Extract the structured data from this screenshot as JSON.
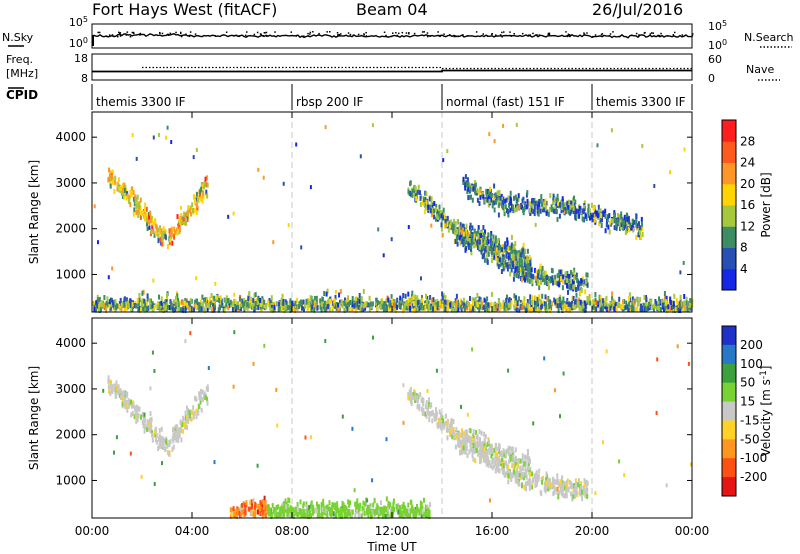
{
  "header": {
    "title": "Fort Hays West (fitACF)",
    "beam": "Beam 04",
    "date": "26/Jul/2016"
  },
  "summary": {
    "nsky_label": "N.Sky",
    "nsearch_label": "N.Search",
    "freq_label": "Freq.",
    "freq_unit": "[MHz]",
    "nave_label": "Nave",
    "cpid_label": "CPID",
    "noise_ticks_left": [
      "10^5",
      "10^0"
    ],
    "noise_ticks_right": [
      "10^5",
      "10^0"
    ],
    "freq_ticks": [
      "18",
      "8"
    ],
    "nave_ticks": [
      "60",
      "0"
    ]
  },
  "cpid_segments": [
    {
      "label": "themis 3300 IF",
      "start_hour": 0,
      "end_hour": 8
    },
    {
      "label": "rbsp 200 IF",
      "start_hour": 8,
      "end_hour": 14
    },
    {
      "label": "normal (fast) 151 IF",
      "start_hour": 14,
      "end_hour": 20
    },
    {
      "label": "themis 3300 IF",
      "start_hour": 20,
      "end_hour": 24
    }
  ],
  "chart_data": [
    {
      "type": "heatmap",
      "quantity": "power",
      "xlabel": "",
      "ylabel": "Slant Range [km]",
      "xlim": [
        0,
        24
      ],
      "ylim": [
        180,
        4550
      ],
      "yticks": [
        1000,
        2000,
        3000,
        4000
      ],
      "colorbar": {
        "label": "Power [dB]",
        "ticks": [
          4,
          8,
          12,
          16,
          20,
          24,
          28
        ],
        "range": [
          0,
          32
        ],
        "colors": [
          "#1428e6",
          "#2850b4",
          "#3c8c64",
          "#a8c83c",
          "#ffd400",
          "#ff9628",
          "#ff5a1e",
          "#ff1e1e"
        ]
      },
      "scatter_bands": [
        {
          "start_hour": 0.6,
          "end_hour": 4.6,
          "range_path_km": [
            [
              0.6,
              3150
            ],
            [
              1.5,
              2650
            ],
            [
              3.0,
              1700
            ],
            [
              4.6,
              2950
            ]
          ],
          "typical_power_db": 18
        },
        {
          "start_hour": 12.6,
          "end_hour": 17.5,
          "range_path_km": [
            [
              12.6,
              2900
            ],
            [
              14.5,
              2000
            ],
            [
              17.5,
              1300
            ]
          ],
          "typical_power_db": 10
        },
        {
          "start_hour": 14.5,
          "end_hour": 19.8,
          "range_path_km": [
            [
              14.5,
              1900
            ],
            [
              17,
              1050
            ],
            [
              19.8,
              750
            ]
          ],
          "typical_power_db": 10
        },
        {
          "start_hour": 14.8,
          "end_hour": 22,
          "range_path_km": [
            [
              14.8,
              2950
            ],
            [
              16.5,
              2500
            ],
            [
              19,
              2450
            ],
            [
              22,
              2000
            ]
          ],
          "typical_power_db": 9
        },
        {
          "start_hour": 0,
          "end_hour": 24,
          "range_path_km": [
            [
              0,
              300
            ],
            [
              24,
              300
            ]
          ],
          "typical_power_db": 12
        }
      ]
    },
    {
      "type": "heatmap",
      "quantity": "velocity",
      "xlabel": "Time UT",
      "ylabel": "Slant Range [km]",
      "xlim": [
        0,
        24
      ],
      "ylim": [
        180,
        4550
      ],
      "xticks": [
        "00:00",
        "04:00",
        "08:00",
        "12:00",
        "16:00",
        "20:00",
        "00:00"
      ],
      "yticks": [
        1000,
        2000,
        3000,
        4000
      ],
      "colorbar": {
        "label": "Velocity [m s^-1]",
        "ticks": [
          200,
          100,
          50,
          15,
          -15,
          -50,
          -100,
          -200
        ],
        "colors": [
          "#1e32c8",
          "#2878c8",
          "#3ca03c",
          "#78d232",
          "#c8c8c8",
          "#ffd228",
          "#ff961e",
          "#ff5014",
          "#e61414"
        ]
      },
      "scatter_bands": [
        {
          "start_hour": 0.6,
          "end_hour": 4.6,
          "range_path_km": [
            [
              0.6,
              3150
            ],
            [
              1.5,
              2650
            ],
            [
              3.0,
              1700
            ],
            [
              4.6,
              2950
            ]
          ],
          "typical_velocity_ms": 0
        },
        {
          "start_hour": 12.6,
          "end_hour": 17.5,
          "range_path_km": [
            [
              12.6,
              2900
            ],
            [
              14.5,
              2000
            ],
            [
              17.5,
              1300
            ]
          ],
          "typical_velocity_ms": 0
        },
        {
          "start_hour": 14.5,
          "end_hour": 19.8,
          "range_path_km": [
            [
              14.5,
              1900
            ],
            [
              17,
              1050
            ],
            [
              19.8,
              750
            ]
          ],
          "typical_velocity_ms": 0
        },
        {
          "start_hour": 5.5,
          "end_hour": 7.0,
          "range_path_km": [
            [
              5.5,
              250
            ],
            [
              7.0,
              400
            ]
          ],
          "typical_velocity_ms": -100
        },
        {
          "start_hour": 7.0,
          "end_hour": 13.5,
          "range_path_km": [
            [
              7.0,
              280
            ],
            [
              13.5,
              280
            ]
          ],
          "typical_velocity_ms": 30
        }
      ]
    }
  ]
}
